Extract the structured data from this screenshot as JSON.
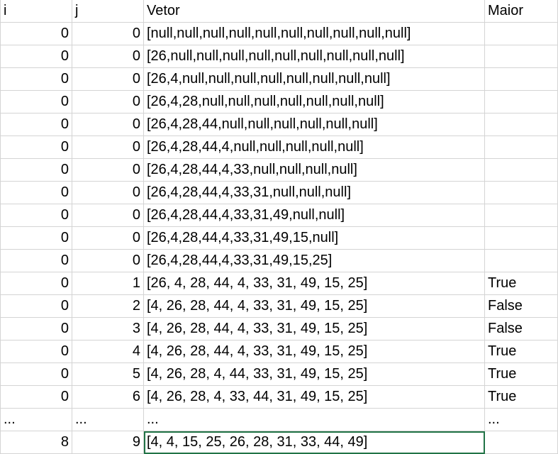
{
  "sheet": {
    "headers": [
      "i",
      "j",
      "Vetor",
      "Maior"
    ],
    "rows": [
      [
        "0",
        "0",
        "[null,null,null,null,null,null,null,null,null,null]",
        ""
      ],
      [
        "0",
        "0",
        "[26,null,null,null,null,null,null,null,null,null]",
        ""
      ],
      [
        "0",
        "0",
        "[26,4,null,null,null,null,null,null,null,null]",
        ""
      ],
      [
        "0",
        "0",
        "[26,4,28,null,null,null,null,null,null,null]",
        ""
      ],
      [
        "0",
        "0",
        "[26,4,28,44,null,null,null,null,null,null]",
        ""
      ],
      [
        "0",
        "0",
        "[26,4,28,44,4,null,null,null,null,null]",
        ""
      ],
      [
        "0",
        "0",
        "[26,4,28,44,4,33,null,null,null,null]",
        ""
      ],
      [
        "0",
        "0",
        "[26,4,28,44,4,33,31,null,null,null]",
        ""
      ],
      [
        "0",
        "0",
        "[26,4,28,44,4,33,31,49,null,null]",
        ""
      ],
      [
        "0",
        "0",
        "[26,4,28,44,4,33,31,49,15,null]",
        ""
      ],
      [
        "0",
        "0",
        "[26,4,28,44,4,33,31,49,15,25]",
        ""
      ],
      [
        "0",
        "1",
        "[26, 4, 28, 44, 4, 33, 31, 49, 15, 25]",
        "True"
      ],
      [
        "0",
        "2",
        "[4, 26, 28, 44, 4, 33, 31, 49, 15, 25]",
        "False"
      ],
      [
        "0",
        "3",
        "[4, 26, 28, 44, 4, 33, 31, 49, 15, 25]",
        "False"
      ],
      [
        "0",
        "4",
        "[4, 26, 28, 44, 4, 33, 31, 49, 15, 25]",
        "True"
      ],
      [
        "0",
        "5",
        "[4, 26, 28, 4, 44, 33, 31, 49, 15, 25]",
        "True"
      ],
      [
        "0",
        "6",
        "[4, 26, 28, 4, 33, 44, 31, 49, 15, 25]",
        "True"
      ],
      [
        "...",
        "...",
        "...",
        "..."
      ],
      [
        "8",
        "9",
        "[4, 4, 15, 25, 26, 28, 31, 33, 44, 49]",
        ""
      ]
    ],
    "selected_row_index": 18,
    "selected_col_index": 2,
    "accent_color": "#217346"
  }
}
